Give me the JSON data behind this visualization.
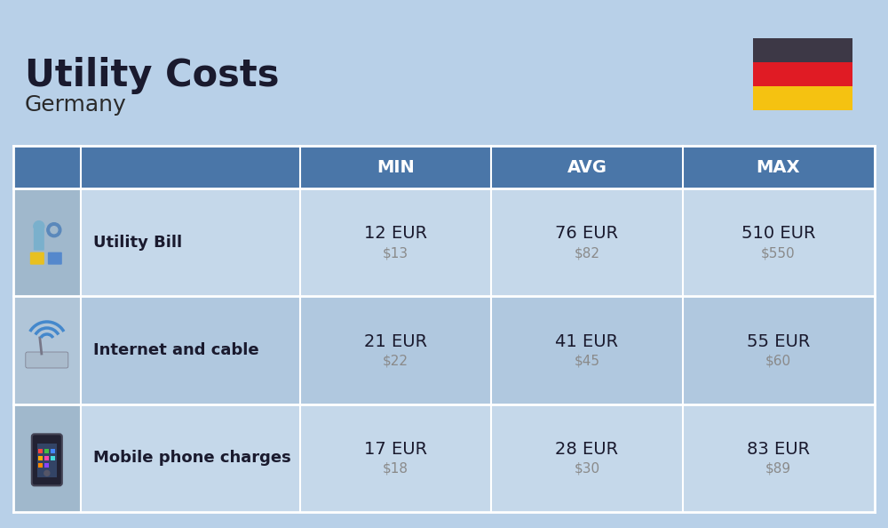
{
  "title": "Utility Costs",
  "subtitle": "Germany",
  "background_color": "#b8d0e8",
  "header_color": "#4a76a8",
  "header_text_color": "#ffffff",
  "row_color_light": "#c5d8ea",
  "row_color_dark": "#b0c8df",
  "icon_col_color_light": "#b0c5d8",
  "icon_col_color_dark": "#a0b8cc",
  "separator_color": "#ffffff",
  "columns_header": [
    "MIN",
    "AVG",
    "MAX"
  ],
  "rows": [
    {
      "label": "Utility Bill",
      "min_eur": "12 EUR",
      "min_usd": "$13",
      "avg_eur": "76 EUR",
      "avg_usd": "$82",
      "max_eur": "510 EUR",
      "max_usd": "$550"
    },
    {
      "label": "Internet and cable",
      "min_eur": "21 EUR",
      "min_usd": "$22",
      "avg_eur": "41 EUR",
      "avg_usd": "$45",
      "max_eur": "55 EUR",
      "max_usd": "$60"
    },
    {
      "label": "Mobile phone charges",
      "min_eur": "17 EUR",
      "min_usd": "$18",
      "avg_eur": "28 EUR",
      "avg_usd": "$30",
      "max_eur": "83 EUR",
      "max_usd": "$89"
    }
  ],
  "flag_colors": [
    "#3d3846",
    "#e01b24",
    "#f5c211"
  ],
  "title_color": "#1a1a2e",
  "subtitle_color": "#2a2a2a",
  "eur_color": "#1a1a2e",
  "usd_color": "#8a8a8a",
  "label_color": "#1a1a2e"
}
